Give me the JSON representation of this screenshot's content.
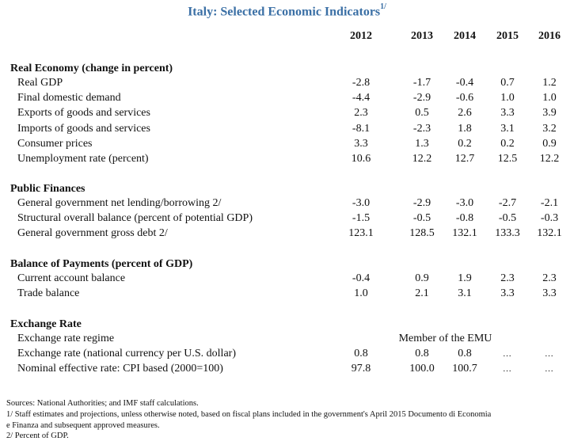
{
  "title": "Italy: Selected Economic Indicators",
  "title_footnote": "1/",
  "years": [
    "2012",
    "2013",
    "2014",
    "2015",
    "2016"
  ],
  "sections": [
    {
      "heading": "Real Economy (change in percent)",
      "rows": [
        {
          "label": "Real GDP",
          "values": [
            "-2.8",
            "-1.7",
            "-0.4",
            "0.7",
            "1.2"
          ]
        },
        {
          "label": "Final domestic demand",
          "values": [
            "-4.4",
            "-2.9",
            "-0.6",
            "1.0",
            "1.0"
          ]
        },
        {
          "label": "Exports of goods and services",
          "values": [
            "2.3",
            "0.5",
            "2.6",
            "3.3",
            "3.9"
          ]
        },
        {
          "label": "Imports of goods and services",
          "values": [
            "-8.1",
            "-2.3",
            "1.8",
            "3.1",
            "3.2"
          ]
        },
        {
          "label": "Consumer prices",
          "values": [
            "3.3",
            "1.3",
            "0.2",
            "0.2",
            "0.9"
          ]
        },
        {
          "label": "Unemployment rate (percent)",
          "values": [
            "10.6",
            "12.2",
            "12.7",
            "12.5",
            "12.2"
          ]
        }
      ]
    },
    {
      "heading": "Public Finances",
      "rows": [
        {
          "label": "General government net lending/borrowing 2/",
          "values": [
            "-3.0",
            "-2.9",
            "-3.0",
            "-2.7",
            "-2.1"
          ]
        },
        {
          "label": "Structural overall balance (percent of potential GDP)",
          "values": [
            "-1.5",
            "-0.5",
            "-0.8",
            "-0.5",
            "-0.3"
          ]
        },
        {
          "label": "General government gross debt 2/",
          "values": [
            "123.1",
            "128.5",
            "132.1",
            "133.3",
            "132.1"
          ]
        }
      ]
    },
    {
      "heading": "Balance of Payments (percent of GDP)",
      "rows": [
        {
          "label": "Current account balance",
          "values": [
            "-0.4",
            "0.9",
            "1.9",
            "2.3",
            "2.3"
          ]
        },
        {
          "label": "Trade balance",
          "values": [
            "1.0",
            "2.1",
            "3.1",
            "3.3",
            "3.3"
          ]
        }
      ]
    },
    {
      "heading": "Exchange Rate",
      "rows": [
        {
          "label": "Exchange rate regime",
          "span_value": "Member of the EMU"
        },
        {
          "label": "Exchange rate (national currency per U.S. dollar)",
          "values": [
            "0.8",
            "0.8",
            "0.8",
            "…",
            "…"
          ]
        },
        {
          "label": "Nominal effective rate: CPI based (2000=100)",
          "values": [
            "97.8",
            "100.0",
            "100.7",
            "…",
            "…"
          ]
        }
      ]
    }
  ],
  "notes": [
    "Sources: National Authorities; and IMF staff calculations.",
    "1/ Staff estimates and projections, unless otherwise noted, based on fiscal plans included in the government's April 2015 Documento di Economia",
    "e Finanza and subsequent approved measures.",
    "2/ Percent of GDP."
  ]
}
